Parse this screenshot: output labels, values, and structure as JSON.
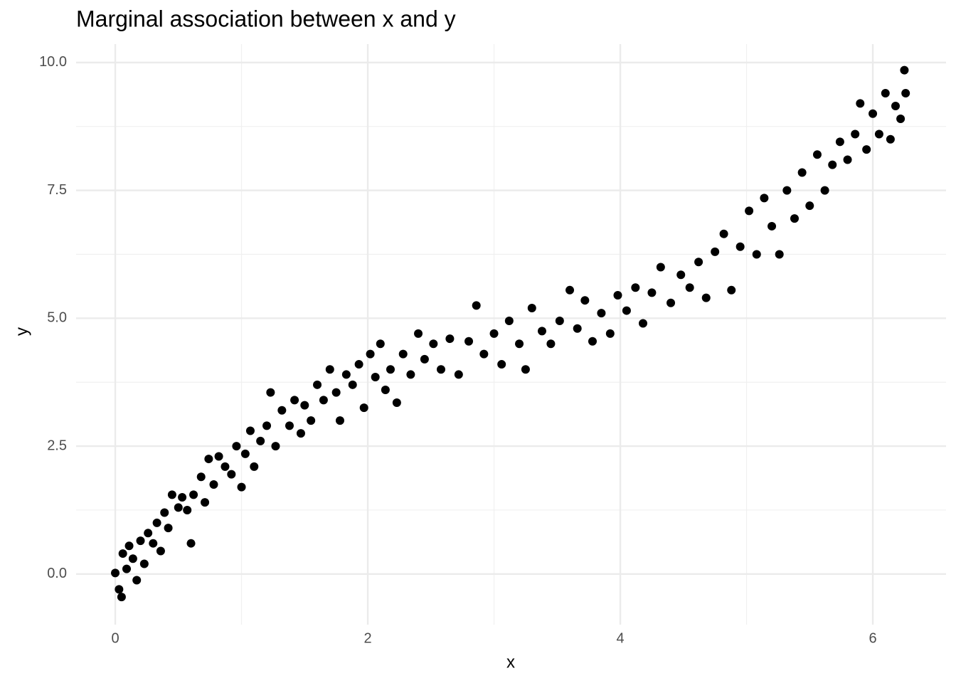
{
  "chart_data": {
    "type": "scatter",
    "title": "Marginal association between x and y",
    "x_label": "x",
    "y_label": "y",
    "color": "#000000",
    "grid": true,
    "xlim": [
      -0.31,
      6.58
    ],
    "ylim": [
      -0.99,
      10.36
    ],
    "xticks": [
      0,
      2,
      4,
      6
    ],
    "yticks": [
      {
        "value": 0,
        "label": "0.0"
      },
      {
        "value": 2.5,
        "label": "2.5"
      },
      {
        "value": 5,
        "label": "5.0"
      },
      {
        "value": 7.5,
        "label": "7.5"
      },
      {
        "value": 10,
        "label": "10.0"
      }
    ],
    "x": [
      0.0,
      0.03,
      0.05,
      0.06,
      0.09,
      0.11,
      0.14,
      0.17,
      0.2,
      0.23,
      0.26,
      0.3,
      0.33,
      0.36,
      0.39,
      0.42,
      0.45,
      0.5,
      0.53,
      0.57,
      0.6,
      0.62,
      0.68,
      0.71,
      0.74,
      0.78,
      0.82,
      0.87,
      0.92,
      0.96,
      1.0,
      1.03,
      1.07,
      1.1,
      1.15,
      1.2,
      1.23,
      1.27,
      1.32,
      1.38,
      1.42,
      1.47,
      1.5,
      1.55,
      1.6,
      1.65,
      1.7,
      1.75,
      1.78,
      1.83,
      1.88,
      1.93,
      1.97,
      2.02,
      2.06,
      2.1,
      2.14,
      2.18,
      2.23,
      2.28,
      2.34,
      2.4,
      2.45,
      2.52,
      2.58,
      2.65,
      2.72,
      2.8,
      2.86,
      2.92,
      3.0,
      3.06,
      3.12,
      3.2,
      3.25,
      3.3,
      3.38,
      3.45,
      3.52,
      3.6,
      3.66,
      3.72,
      3.78,
      3.85,
      3.92,
      3.98,
      4.05,
      4.12,
      4.18,
      4.25,
      4.32,
      4.4,
      4.48,
      4.55,
      4.62,
      4.68,
      4.75,
      4.82,
      4.88,
      4.95,
      5.02,
      5.08,
      5.14,
      5.2,
      5.26,
      5.32,
      5.38,
      5.44,
      5.5,
      5.56,
      5.62,
      5.68,
      5.74,
      5.8,
      5.86,
      5.9,
      5.95,
      6.0,
      6.05,
      6.1,
      6.14,
      6.18,
      6.22,
      6.25,
      6.26
    ],
    "values": [
      0.02,
      -0.3,
      -0.45,
      0.4,
      0.1,
      0.55,
      0.3,
      -0.12,
      0.65,
      0.2,
      0.8,
      0.6,
      1.0,
      0.45,
      1.2,
      0.9,
      1.55,
      1.3,
      1.5,
      1.25,
      0.6,
      1.55,
      1.9,
      1.4,
      2.25,
      1.75,
      2.3,
      2.1,
      1.95,
      2.5,
      1.7,
      2.35,
      2.8,
      2.1,
      2.6,
      2.9,
      3.55,
      2.5,
      3.2,
      2.9,
      3.4,
      2.75,
      3.3,
      3.0,
      3.7,
      3.4,
      4.0,
      3.55,
      3.0,
      3.9,
      3.7,
      4.1,
      3.25,
      4.3,
      3.85,
      4.5,
      3.6,
      4.0,
      3.35,
      4.3,
      3.9,
      4.7,
      4.2,
      4.5,
      4.0,
      4.6,
      3.9,
      4.55,
      5.25,
      4.3,
      4.7,
      4.1,
      4.95,
      4.5,
      4.0,
      5.2,
      4.75,
      4.5,
      4.95,
      5.55,
      4.8,
      5.35,
      4.55,
      5.1,
      4.7,
      5.45,
      5.15,
      5.6,
      4.9,
      5.5,
      6.0,
      5.3,
      5.85,
      5.6,
      6.1,
      5.4,
      6.3,
      6.65,
      5.55,
      6.4,
      7.1,
      6.25,
      7.35,
      6.8,
      6.25,
      7.5,
      6.95,
      7.85,
      7.2,
      8.2,
      7.5,
      8.0,
      8.45,
      8.1,
      8.6,
      9.2,
      8.3,
      9.0,
      8.6,
      9.4,
      8.5,
      9.15,
      8.9,
      9.85,
      9.4
    ]
  }
}
